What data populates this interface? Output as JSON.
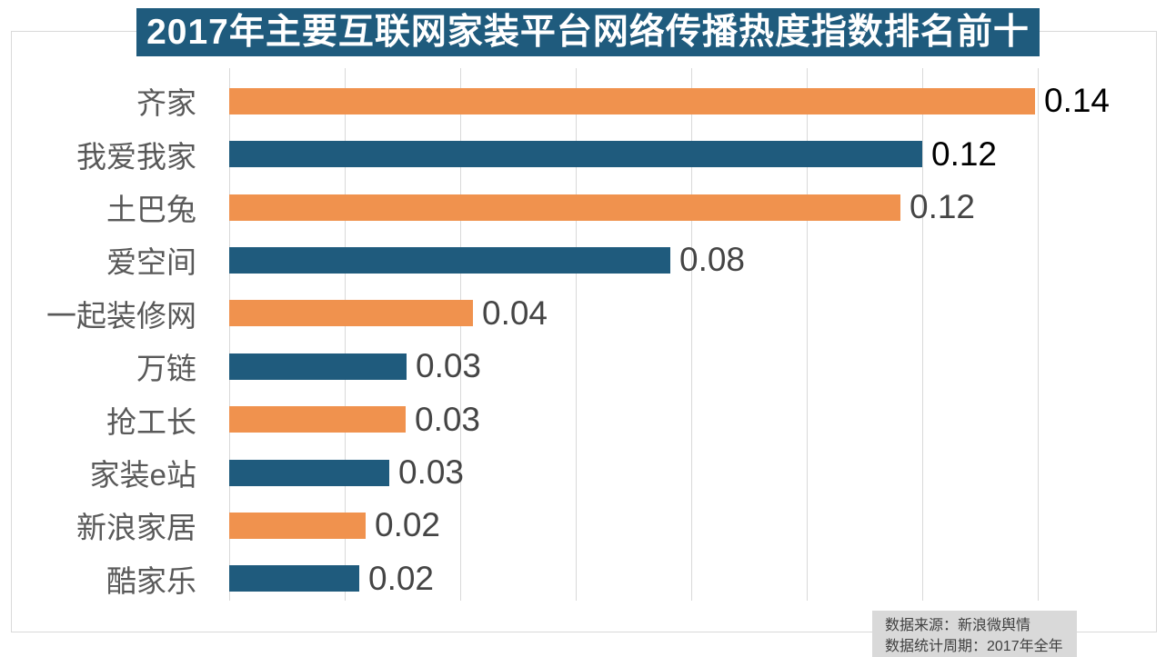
{
  "title": {
    "text": "2017年主要互联网家装平台网络传播热度指数排名前十",
    "bg": "#1F5B7D",
    "color": "#FFFFFF"
  },
  "source_note": {
    "line1": "数据来源：新浪微舆情",
    "line2": "数据统计周期：2017年全年"
  },
  "colors": {
    "orange": "#F0924E",
    "blue": "#1F5B7D",
    "gridline": "#D9D9D9",
    "border": "#D9D9D9",
    "category_label": "#595959",
    "value_label_emphasis": "#000000",
    "value_label_normal": "#454545",
    "note_bg": "#D9D9D9",
    "note_text": "#404040"
  },
  "chart_data": {
    "type": "bar",
    "orientation": "horizontal",
    "title": "2017年主要互联网家装平台网络传播热度指数排名前十",
    "categories": [
      "齐家",
      "我爱我家",
      "土巴兔",
      "爱空间",
      "一起装修网",
      "万链",
      "抢工长",
      "家装e站",
      "新浪家居",
      "酷家乐"
    ],
    "values": [
      0.14,
      0.12,
      0.12,
      0.08,
      0.04,
      0.03,
      0.03,
      0.03,
      0.02,
      0.02
    ],
    "value_labels": [
      "0.14",
      "0.12",
      "0.12",
      "0.08",
      "0.04",
      "0.03",
      "0.03",
      "0.03",
      "0.02",
      "0.02"
    ],
    "values_precise": [
      0.1395,
      0.12,
      0.1162,
      0.0764,
      0.0422,
      0.0307,
      0.0306,
      0.0277,
      0.0236,
      0.0225
    ],
    "xlabel": "",
    "ylabel": "",
    "xlim": [
      0,
      0.16
    ],
    "gridlines": [
      0,
      0.02,
      0.04,
      0.06,
      0.08,
      0.1,
      0.12,
      0.14
    ],
    "x_tick_labels_visible": false,
    "grid": "vertical-only",
    "legend": "none",
    "bar_color_pattern": "alternating-orange-blue"
  }
}
